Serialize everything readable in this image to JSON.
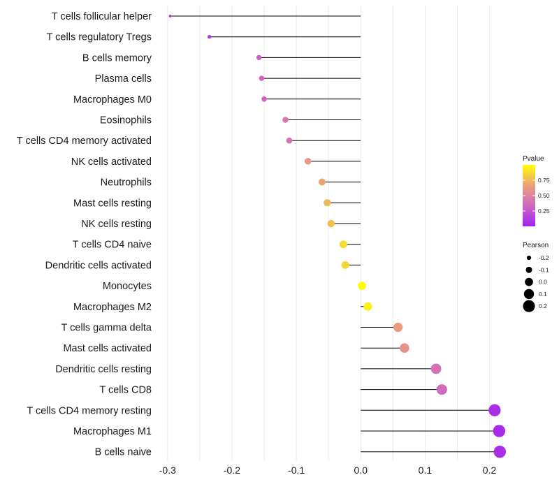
{
  "chart_data": {
    "type": "lollipop",
    "title": "",
    "xlabel": "",
    "ylabel": "",
    "xlim": [
      -0.315,
      0.245
    ],
    "x_ticks": [
      -0.3,
      -0.2,
      -0.1,
      0.0,
      0.1,
      0.2
    ],
    "x_tick_labels": [
      "-0.3",
      "-0.2",
      "-0.1",
      "0.0",
      "0.1",
      "0.2"
    ],
    "grid": true,
    "categories": [
      "T cells follicular helper",
      "T cells regulatory  Tregs",
      "B cells memory",
      "Plasma cells",
      "Macrophages M0",
      "Eosinophils",
      "T cells CD4 memory activated",
      "NK cells activated",
      "Neutrophils",
      "Mast cells resting",
      "NK cells resting",
      "T cells CD4 naive",
      "Dendritic cells activated",
      "Monocytes",
      "Macrophages M2",
      "T cells gamma delta",
      "Mast cells activated",
      "Dendritic cells resting",
      "T cells CD8",
      "T cells CD4 memory resting",
      "Macrophages M1",
      "B cells naive"
    ],
    "pearson": [
      -0.296,
      -0.235,
      -0.158,
      -0.154,
      -0.15,
      -0.117,
      -0.111,
      -0.082,
      -0.06,
      -0.052,
      -0.046,
      -0.027,
      -0.024,
      0.002,
      0.011,
      0.058,
      0.068,
      0.117,
      0.126,
      0.208,
      0.215,
      0.216
    ],
    "pvalue": [
      0.05,
      0.1,
      0.3,
      0.32,
      0.3,
      0.42,
      0.4,
      0.62,
      0.68,
      0.75,
      0.78,
      0.88,
      0.85,
      1.0,
      0.95,
      0.65,
      0.6,
      0.38,
      0.35,
      0.06,
      0.05,
      0.06
    ],
    "color_legend": {
      "title": "Pvalue",
      "ticks": [
        0.25,
        0.5,
        0.75
      ],
      "tick_labels": [
        "0.25",
        "0.50",
        "0.75"
      ],
      "range": [
        0.0,
        1.0
      ],
      "colors": [
        "#a020f0",
        "#cf68c0",
        "#eba07a",
        "#ffff00"
      ]
    },
    "size_legend": {
      "title": "Pearson",
      "values": [
        -0.2,
        -0.1,
        0.0,
        0.1,
        0.2
      ],
      "labels": [
        "-0.2",
        "-0.1",
        "0.0",
        "0.1",
        "0.2"
      ]
    }
  }
}
